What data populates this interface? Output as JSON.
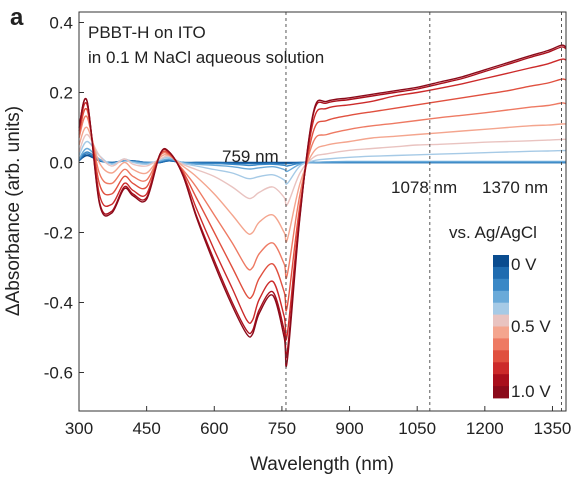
{
  "chart_data": {
    "type": "line",
    "panel_label": "a",
    "annotations": {
      "sample": "PBBT-H on ITO",
      "medium": "in 0.1 M NaCl aqueous solution",
      "peak_labels": [
        "759 nm",
        "1078 nm",
        "1370 nm"
      ],
      "reference_lines_x": [
        759,
        1078,
        1370
      ]
    },
    "xlabel": "Wavelength (nm)",
    "ylabel": "ΔAbsorbance (arb. units)",
    "xlim": [
      300,
      1380
    ],
    "ylim": [
      -0.71,
      0.43
    ],
    "x_ticks": [
      300,
      450,
      600,
      750,
      900,
      1050,
      1200,
      1350
    ],
    "y_ticks": [
      {
        "v": 0.4,
        "label": "0.4"
      },
      {
        "v": 0.2,
        "label": "0.2"
      },
      {
        "v": 0.0,
        "label": "0.0"
      },
      {
        "v": -0.2,
        "label": "-0.2"
      },
      {
        "v": -0.4,
        "label": "-0.4"
      },
      {
        "v": -0.6,
        "label": "-0.6"
      }
    ],
    "grid": false,
    "legend": {
      "title": "vs. Ag/AgCl",
      "placement": "bottom-right",
      "tick_labels": [
        "0 V",
        "0.5 V",
        "1.0 V"
      ]
    },
    "key_wavelengths": [
      300,
      318,
      345,
      372,
      400,
      420,
      450,
      480,
      500,
      530,
      560,
      600,
      640,
      672,
      685,
      700,
      730,
      755,
      762,
      790,
      820,
      850,
      900,
      950,
      1000,
      1050,
      1100,
      1150,
      1200,
      1250,
      1300,
      1340,
      1370,
      1380
    ],
    "series": [
      {
        "color": "#0a4c8f",
        "values": [
          0.005,
          0.02,
          0.005,
          0.0,
          0.005,
          0.005,
          0.0,
          0.0,
          0.005,
          0.0,
          0.0,
          0.0,
          0.0,
          0.0,
          0.0,
          0.0,
          0.0,
          0.0,
          0.0,
          0.0,
          0.0,
          0.0,
          0.0,
          0.0,
          0.0,
          0.0,
          0.0,
          0.0,
          0.0,
          0.0,
          0.0,
          0.0,
          0.0,
          0.0
        ]
      },
      {
        "color": "#1f6cb0",
        "values": [
          0.005,
          0.025,
          0.005,
          0.0,
          0.005,
          0.005,
          0.0,
          0.0,
          0.005,
          0.0,
          0.0,
          0.0,
          -0.002,
          -0.003,
          -0.003,
          -0.003,
          -0.002,
          -0.003,
          -0.003,
          0.0,
          0.0,
          0.0,
          0.0,
          0.0,
          0.0,
          0.0,
          0.0,
          0.0,
          0.0,
          0.0,
          0.0,
          0.0,
          0.0,
          0.0
        ]
      },
      {
        "color": "#3a88c6",
        "values": [
          0.008,
          0.03,
          0.008,
          -0.002,
          0.005,
          0.003,
          0.0,
          0.003,
          0.008,
          0.0,
          -0.002,
          -0.003,
          -0.005,
          -0.008,
          -0.008,
          -0.006,
          -0.005,
          -0.008,
          -0.01,
          -0.002,
          0.0,
          0.0,
          0.0,
          0.0,
          0.0,
          0.0,
          0.0,
          0.0,
          0.0,
          0.0,
          0.0,
          0.0,
          0.0,
          0.0
        ]
      },
      {
        "color": "#6aaad9",
        "values": [
          0.01,
          0.04,
          0.01,
          -0.003,
          0.005,
          0.002,
          -0.002,
          0.005,
          0.01,
          0.0,
          -0.005,
          -0.008,
          -0.012,
          -0.018,
          -0.018,
          -0.015,
          -0.012,
          -0.02,
          -0.025,
          -0.005,
          0.0,
          0.002,
          0.003,
          0.003,
          0.003,
          0.003,
          0.003,
          0.003,
          0.003,
          0.003,
          0.003,
          0.003,
          0.003,
          0.003
        ]
      },
      {
        "color": "#a6cae6",
        "values": [
          0.02,
          0.06,
          0.02,
          -0.005,
          0.01,
          0.0,
          -0.005,
          0.008,
          0.015,
          -0.002,
          -0.01,
          -0.02,
          -0.03,
          -0.045,
          -0.045,
          -0.04,
          -0.035,
          -0.05,
          -0.06,
          -0.01,
          0.005,
          0.01,
          0.015,
          0.018,
          0.02,
          0.022,
          0.024,
          0.026,
          0.028,
          0.03,
          0.032,
          0.033,
          0.034,
          0.034
        ]
      },
      {
        "color": "#e9c3c0",
        "values": [
          0.03,
          0.08,
          0.02,
          -0.01,
          0.01,
          -0.005,
          -0.01,
          0.01,
          0.018,
          -0.005,
          -0.02,
          -0.04,
          -0.07,
          -0.1,
          -0.1,
          -0.085,
          -0.07,
          -0.1,
          -0.12,
          -0.03,
          0.015,
          0.025,
          0.035,
          0.04,
          0.045,
          0.05,
          0.052,
          0.055,
          0.058,
          0.06,
          0.062,
          0.064,
          0.066,
          0.066
        ]
      },
      {
        "color": "#f4a58e",
        "values": [
          0.05,
          0.1,
          0.0,
          -0.03,
          0.0,
          -0.02,
          -0.03,
          0.015,
          0.02,
          -0.01,
          -0.04,
          -0.09,
          -0.15,
          -0.2,
          -0.2,
          -0.17,
          -0.15,
          -0.2,
          -0.22,
          -0.06,
          0.03,
          0.05,
          0.06,
          0.07,
          0.075,
          0.08,
          0.085,
          0.09,
          0.095,
          0.1,
          0.105,
          0.107,
          0.11,
          0.11
        ]
      },
      {
        "color": "#ee7a63",
        "values": [
          0.07,
          0.13,
          -0.03,
          -0.06,
          -0.02,
          -0.04,
          -0.05,
          0.02,
          0.022,
          -0.02,
          -0.07,
          -0.15,
          -0.23,
          -0.3,
          -0.3,
          -0.26,
          -0.23,
          -0.29,
          -0.32,
          -0.09,
          0.06,
          0.08,
          0.095,
          0.105,
          0.112,
          0.12,
          0.128,
          0.135,
          0.142,
          0.15,
          0.158,
          0.163,
          0.17,
          0.168
        ]
      },
      {
        "color": "#e0503f",
        "values": [
          0.08,
          0.15,
          -0.06,
          -0.09,
          -0.04,
          -0.06,
          -0.07,
          0.022,
          0.025,
          -0.025,
          -0.1,
          -0.2,
          -0.3,
          -0.38,
          -0.38,
          -0.33,
          -0.29,
          -0.37,
          -0.41,
          -0.12,
          0.09,
          0.12,
          0.135,
          0.145,
          0.155,
          0.165,
          0.175,
          0.185,
          0.195,
          0.205,
          0.218,
          0.227,
          0.238,
          0.236
        ]
      },
      {
        "color": "#cc2a2a",
        "values": [
          0.09,
          0.165,
          -0.09,
          -0.12,
          -0.06,
          -0.08,
          -0.09,
          0.025,
          0.028,
          -0.03,
          -0.13,
          -0.25,
          -0.36,
          -0.45,
          -0.45,
          -0.39,
          -0.34,
          -0.44,
          -0.49,
          -0.14,
          0.12,
          0.155,
          0.165,
          0.175,
          0.19,
          0.2,
          0.212,
          0.225,
          0.24,
          0.255,
          0.27,
          0.282,
          0.295,
          0.293
        ]
      },
      {
        "color": "#a90f1c",
        "values": [
          0.1,
          0.175,
          -0.11,
          -0.14,
          -0.07,
          -0.09,
          -0.1,
          0.025,
          0.03,
          -0.035,
          -0.15,
          -0.28,
          -0.4,
          -0.48,
          -0.48,
          -0.42,
          -0.37,
          -0.48,
          -0.54,
          -0.15,
          0.14,
          0.17,
          0.18,
          0.19,
          0.2,
          0.21,
          0.225,
          0.24,
          0.26,
          0.28,
          0.3,
          0.315,
          0.33,
          0.325
        ]
      },
      {
        "color": "#8b0a1a",
        "values": [
          0.1,
          0.175,
          -0.115,
          -0.145,
          -0.075,
          -0.095,
          -0.105,
          0.025,
          0.03,
          -0.035,
          -0.155,
          -0.29,
          -0.41,
          -0.49,
          -0.49,
          -0.43,
          -0.38,
          -0.5,
          -0.565,
          -0.155,
          0.145,
          0.175,
          0.185,
          0.195,
          0.205,
          0.215,
          0.23,
          0.245,
          0.265,
          0.285,
          0.305,
          0.32,
          0.335,
          0.33
        ]
      }
    ]
  }
}
